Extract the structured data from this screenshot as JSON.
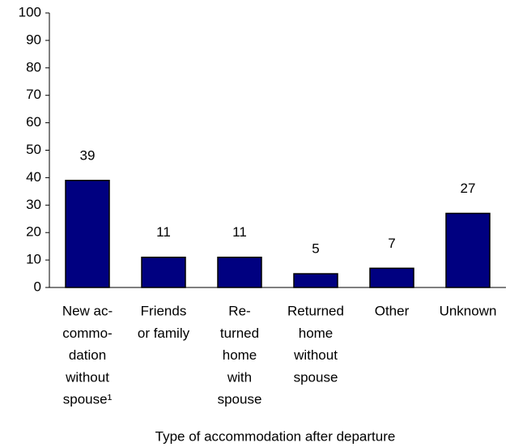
{
  "chart_data": {
    "type": "bar",
    "x_label": "Type of accommodation after departure",
    "categories": [
      [
        "New ac-",
        "commo-",
        "dation",
        "without",
        "spouse¹"
      ],
      [
        "Friends",
        "or family"
      ],
      [
        "Re-",
        "turned",
        "home",
        "with",
        "spouse"
      ],
      [
        "Returned",
        "home",
        "without",
        "spouse"
      ],
      [
        "Other"
      ],
      [
        "Unknown"
      ]
    ],
    "values": [
      39,
      11,
      11,
      5,
      7,
      27
    ],
    "color": "#000080",
    "ylim": [
      0,
      100
    ],
    "yticks": [
      0,
      10,
      20,
      30,
      40,
      50,
      60,
      70,
      80,
      90,
      100
    ],
    "grid": false
  }
}
